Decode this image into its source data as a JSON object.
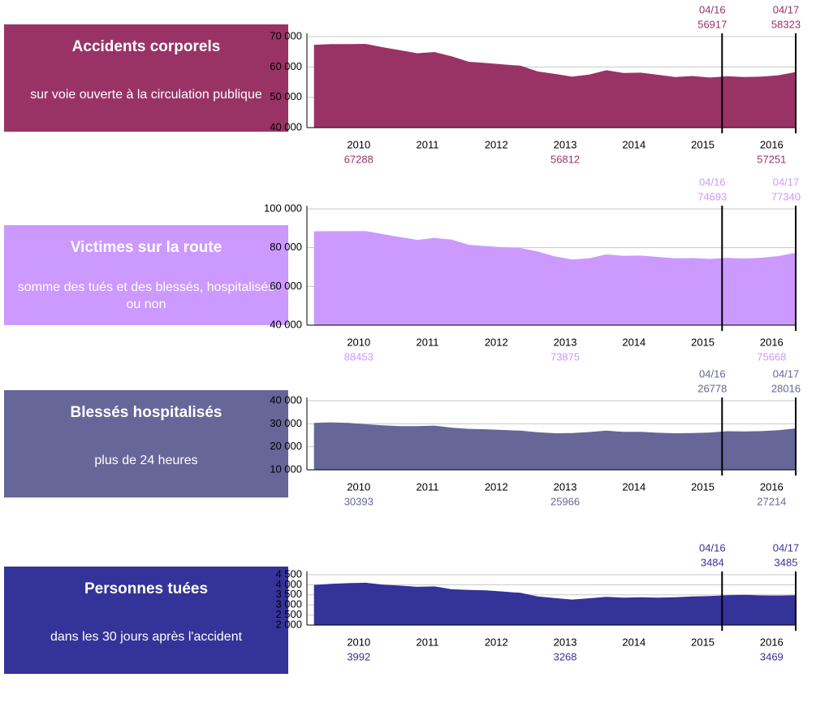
{
  "chart_data": [
    {
      "type": "area",
      "title": "Accidents corporels",
      "subtitle": "sur voie ouverte à la circulation publique",
      "color": "#993366",
      "x": [
        2009.35,
        2009.6,
        2009.85,
        2010.1,
        2010.35,
        2010.6,
        2010.85,
        2011.1,
        2011.35,
        2011.6,
        2011.85,
        2012.1,
        2012.35,
        2012.6,
        2012.85,
        2013.1,
        2013.35,
        2013.6,
        2013.85,
        2014.1,
        2014.35,
        2014.6,
        2014.85,
        2015.1,
        2015.35,
        2015.6,
        2015.85,
        2016.1,
        2016.35
      ],
      "values": [
        67288,
        67500,
        67500,
        67600,
        66500,
        65500,
        64500,
        64900,
        63500,
        61700,
        61300,
        60800,
        60400,
        58500,
        57700,
        56812,
        57500,
        58900,
        58000,
        58100,
        57400,
        56700,
        57000,
        56500,
        56917,
        56700,
        56800,
        57251,
        58323
      ],
      "xlim": [
        2009.33,
        2016.35
      ],
      "xticks": [
        2010,
        2011,
        2012,
        2013,
        2014,
        2015,
        2016
      ],
      "ylim": [
        40000,
        70000
      ],
      "yticks": [
        {
          "value": 40000,
          "label": "40 000"
        },
        {
          "value": 50000,
          "label": "50 000"
        },
        {
          "value": 60000,
          "label": "60 000"
        },
        {
          "value": 70000,
          "label": "70 000"
        }
      ],
      "grid": true,
      "markers": [
        {
          "x": 2015.28,
          "label": "04/16",
          "value": 56917
        },
        {
          "x": 2016.35,
          "label": "04/17",
          "value": 58323
        }
      ],
      "annotations": [
        {
          "x": 2010,
          "value": 67288
        },
        {
          "x": 2013,
          "value": 56812
        },
        {
          "x": 2016,
          "value": 57251
        }
      ]
    },
    {
      "type": "area",
      "title": "Victimes sur la route",
      "subtitle": "somme des tués et des blessés, hospitalisés ou non",
      "color": "#cc99ff",
      "x": [
        2009.35,
        2009.6,
        2009.85,
        2010.1,
        2010.35,
        2010.6,
        2010.85,
        2011.1,
        2011.35,
        2011.6,
        2011.85,
        2012.1,
        2012.35,
        2012.6,
        2012.85,
        2013.1,
        2013.35,
        2013.6,
        2013.85,
        2014.1,
        2014.35,
        2014.6,
        2014.85,
        2015.1,
        2015.35,
        2015.6,
        2015.85,
        2016.1,
        2016.35
      ],
      "values": [
        88453,
        88500,
        88500,
        88600,
        87000,
        85500,
        84000,
        85000,
        84200,
        81500,
        80800,
        80200,
        79800,
        78000,
        75500,
        73875,
        74500,
        76500,
        75800,
        75900,
        75200,
        74500,
        74600,
        74200,
        74693,
        74400,
        74800,
        75668,
        77340
      ],
      "xlim": [
        2009.33,
        2016.35
      ],
      "xticks": [
        2010,
        2011,
        2012,
        2013,
        2014,
        2015,
        2016
      ],
      "ylim": [
        40000,
        100000
      ],
      "yticks": [
        {
          "value": 40000,
          "label": "40 000"
        },
        {
          "value": 60000,
          "label": "60 000"
        },
        {
          "value": 80000,
          "label": "80 000"
        },
        {
          "value": 100000,
          "label": "100 000"
        }
      ],
      "grid": true,
      "markers": [
        {
          "x": 2015.28,
          "label": "04/16",
          "value": 74693
        },
        {
          "x": 2016.35,
          "label": "04/17",
          "value": 77340
        }
      ],
      "annotations": [
        {
          "x": 2010,
          "value": 88453
        },
        {
          "x": 2013,
          "value": 73875
        },
        {
          "x": 2016,
          "value": 75668
        }
      ]
    },
    {
      "type": "area",
      "title": "Blessés hospitalisés",
      "subtitle": "plus de 24 heures",
      "color": "#666699",
      "x": [
        2009.35,
        2009.6,
        2009.85,
        2010.1,
        2010.35,
        2010.6,
        2010.85,
        2011.1,
        2011.35,
        2011.6,
        2011.85,
        2012.1,
        2012.35,
        2012.6,
        2012.85,
        2013.1,
        2013.35,
        2013.6,
        2013.85,
        2014.1,
        2014.35,
        2014.6,
        2014.85,
        2015.1,
        2015.35,
        2015.6,
        2015.85,
        2016.1,
        2016.35
      ],
      "values": [
        30393,
        30600,
        30400,
        29800,
        29300,
        29000,
        29000,
        29200,
        28300,
        27800,
        27600,
        27300,
        27000,
        26300,
        25900,
        25966,
        26400,
        27000,
        26500,
        26500,
        26100,
        25900,
        26000,
        26200,
        26778,
        26700,
        26800,
        27214,
        28016
      ],
      "xlim": [
        2009.33,
        2016.35
      ],
      "xticks": [
        2010,
        2011,
        2012,
        2013,
        2014,
        2015,
        2016
      ],
      "ylim": [
        10000,
        40000
      ],
      "yticks": [
        {
          "value": 10000,
          "label": "10 000"
        },
        {
          "value": 20000,
          "label": "20 000"
        },
        {
          "value": 30000,
          "label": "30 000"
        },
        {
          "value": 40000,
          "label": "40 000"
        }
      ],
      "grid": true,
      "markers": [
        {
          "x": 2015.28,
          "label": "04/16",
          "value": 26778
        },
        {
          "x": 2016.35,
          "label": "04/17",
          "value": 28016
        }
      ],
      "annotations": [
        {
          "x": 2010,
          "value": 30393
        },
        {
          "x": 2013,
          "value": 25966
        },
        {
          "x": 2016,
          "value": 27214
        }
      ]
    },
    {
      "type": "area",
      "title": "Personnes tuées",
      "subtitle": "dans les 30 jours après l'accident",
      "color": "#333399",
      "x": [
        2009.35,
        2009.6,
        2009.85,
        2010.1,
        2010.35,
        2010.6,
        2010.85,
        2011.1,
        2011.35,
        2011.6,
        2011.85,
        2012.1,
        2012.35,
        2012.6,
        2012.85,
        2013.1,
        2013.35,
        2013.6,
        2013.85,
        2014.1,
        2014.35,
        2014.6,
        2014.85,
        2015.1,
        2015.35,
        2015.6,
        2015.85,
        2016.1,
        2016.35
      ],
      "values": [
        3992,
        4050,
        4080,
        4100,
        4010,
        3960,
        3900,
        3920,
        3780,
        3740,
        3720,
        3660,
        3600,
        3420,
        3340,
        3268,
        3330,
        3400,
        3360,
        3380,
        3360,
        3380,
        3420,
        3440,
        3484,
        3500,
        3470,
        3469,
        3485
      ],
      "xlim": [
        2009.33,
        2016.35
      ],
      "xticks": [
        2010,
        2011,
        2012,
        2013,
        2014,
        2015,
        2016
      ],
      "ylim": [
        2000,
        4500
      ],
      "yticks": [
        {
          "value": 2000,
          "label": "2 000"
        },
        {
          "value": 2500,
          "label": "2 500"
        },
        {
          "value": 3000,
          "label": "3 000"
        },
        {
          "value": 3500,
          "label": "3 500"
        },
        {
          "value": 4000,
          "label": "4 000"
        },
        {
          "value": 4500,
          "label": "4 500"
        }
      ],
      "grid": true,
      "markers": [
        {
          "x": 2015.28,
          "label": "04/16",
          "value": 3484
        },
        {
          "x": 2016.35,
          "label": "04/17",
          "value": 3485
        }
      ],
      "annotations": [
        {
          "x": 2010,
          "value": 3992
        },
        {
          "x": 2013,
          "value": 3268
        },
        {
          "x": 2016,
          "value": 3469
        }
      ]
    }
  ]
}
